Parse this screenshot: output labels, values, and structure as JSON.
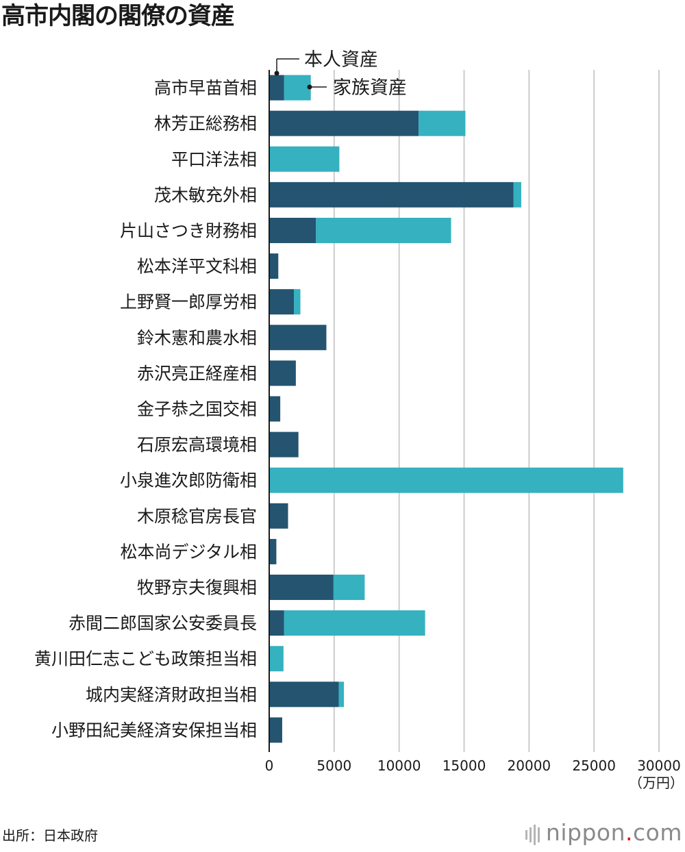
{
  "title": "高市内閣の閣僚の資産",
  "source": "出所：日本政府",
  "logo": {
    "main": "nippon",
    "dot": ".",
    "suffix": "com"
  },
  "colors": {
    "personal": "#245470",
    "family": "#35b1bf",
    "grid": "#cccccc",
    "axis": "#1a1a1a"
  },
  "chart_data": {
    "type": "bar",
    "orientation": "horizontal",
    "stacked": true,
    "title": "高市内閣の閣僚の資産",
    "unit_label": "（万円）",
    "xlim": [
      0,
      30000
    ],
    "x_ticks": [
      0,
      5000,
      10000,
      15000,
      20000,
      25000,
      30000
    ],
    "grid": true,
    "legend_placement": "top",
    "categories": [
      "高市早苗首相",
      "林芳正総務相",
      "平口洋法相",
      "茂木敏充外相",
      "片山さつき財務相",
      "松本洋平文科相",
      "上野賢一郎厚労相",
      "鈴木憲和農水相",
      "赤沢亮正経産相",
      "金子恭之国交相",
      "石原宏高環境相",
      "小泉進次郎防衛相",
      "木原稔官房長官",
      "松本尚デジタル相",
      "牧野京夫復興相",
      "赤間二郎国家公安委員長",
      "黄川田仁志こども政策担当相",
      "城内実経済財政担当相",
      "小野田紀美経済安保担当相"
    ],
    "series": [
      {
        "name": "本人資産",
        "values": [
          1150,
          11500,
          0,
          18800,
          3600,
          700,
          1900,
          4400,
          2050,
          850,
          2250,
          0,
          1450,
          550,
          4950,
          1150,
          0,
          5350,
          1000
        ]
      },
      {
        "name": "家族資産",
        "values": [
          2050,
          3600,
          5400,
          600,
          10400,
          0,
          500,
          0,
          0,
          0,
          0,
          27250,
          0,
          0,
          2400,
          10850,
          1100,
          400,
          0
        ]
      }
    ]
  }
}
